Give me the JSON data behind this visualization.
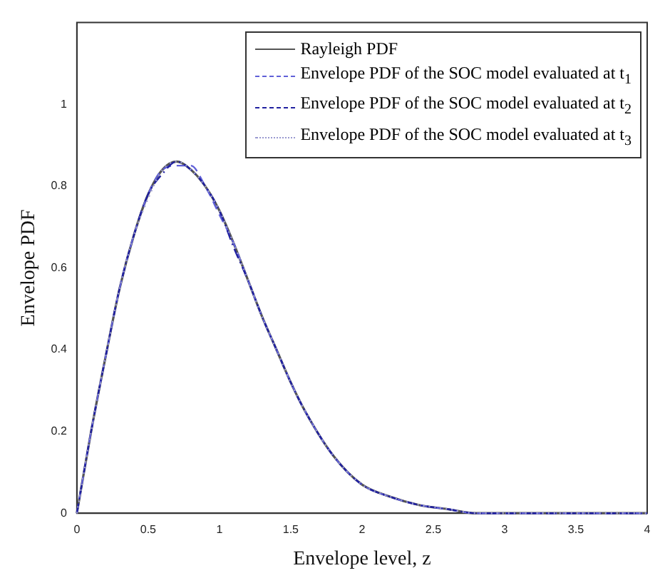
{
  "chart_data": {
    "type": "line",
    "xlabel": "Envelope level, z",
    "ylabel": "Envelope PDF",
    "x": [
      0,
      0.1,
      0.2,
      0.3,
      0.4,
      0.5,
      0.6,
      0.7,
      0.8,
      0.9,
      1.0,
      1.1,
      1.2,
      1.3,
      1.4,
      1.5,
      1.6,
      1.8,
      2.0,
      2.2,
      2.4,
      2.6,
      2.8,
      3.0,
      3.5,
      4.0
    ],
    "series": [
      {
        "name": "Rayleigh PDF",
        "color": "#555555",
        "line_style": "solid",
        "values": [
          0,
          0.2,
          0.38,
          0.55,
          0.68,
          0.78,
          0.84,
          0.86,
          0.84,
          0.8,
          0.74,
          0.66,
          0.57,
          0.48,
          0.4,
          0.32,
          0.25,
          0.14,
          0.07,
          0.04,
          0.02,
          0.01,
          0,
          0,
          0,
          0
        ]
      },
      {
        "name": "Envelope PDF of the SOC model evaluated at t$_{1}$",
        "color": "#6060d8",
        "line_style": "dashed",
        "values": [
          0,
          0.2,
          0.38,
          0.55,
          0.68,
          0.78,
          0.84,
          0.85,
          0.85,
          0.8,
          0.73,
          0.66,
          0.57,
          0.48,
          0.4,
          0.32,
          0.25,
          0.14,
          0.07,
          0.04,
          0.02,
          0.01,
          0,
          0,
          0,
          0
        ]
      },
      {
        "name": "Envelope PDF of the SOC model evaluated at t$_{2}$",
        "color": "#2020a0",
        "line_style": "dashdot",
        "values": [
          0,
          0.2,
          0.38,
          0.55,
          0.68,
          0.78,
          0.83,
          0.86,
          0.84,
          0.8,
          0.74,
          0.65,
          0.57,
          0.48,
          0.4,
          0.32,
          0.25,
          0.14,
          0.07,
          0.04,
          0.02,
          0.01,
          0,
          0,
          0,
          0
        ]
      },
      {
        "name": "Envelope PDF of the SOC model evaluated at t$_{3}$",
        "color": "#9a9ad0",
        "line_style": "dotted",
        "values": [
          0,
          0.2,
          0.38,
          0.55,
          0.68,
          0.77,
          0.84,
          0.86,
          0.84,
          0.8,
          0.74,
          0.66,
          0.57,
          0.48,
          0.4,
          0.32,
          0.25,
          0.14,
          0.07,
          0.04,
          0.02,
          0.01,
          0,
          0,
          0,
          0
        ]
      }
    ],
    "xlim": [
      0,
      4
    ],
    "xticks": [
      0,
      0.5,
      1,
      1.5,
      2,
      2.5,
      3,
      3.5,
      4
    ],
    "ylim": [
      0,
      1.2
    ],
    "yticks": [
      0,
      0.2,
      0.4,
      0.6,
      0.8,
      1
    ],
    "grid": false,
    "legend": "top right",
    "marker": "none"
  }
}
